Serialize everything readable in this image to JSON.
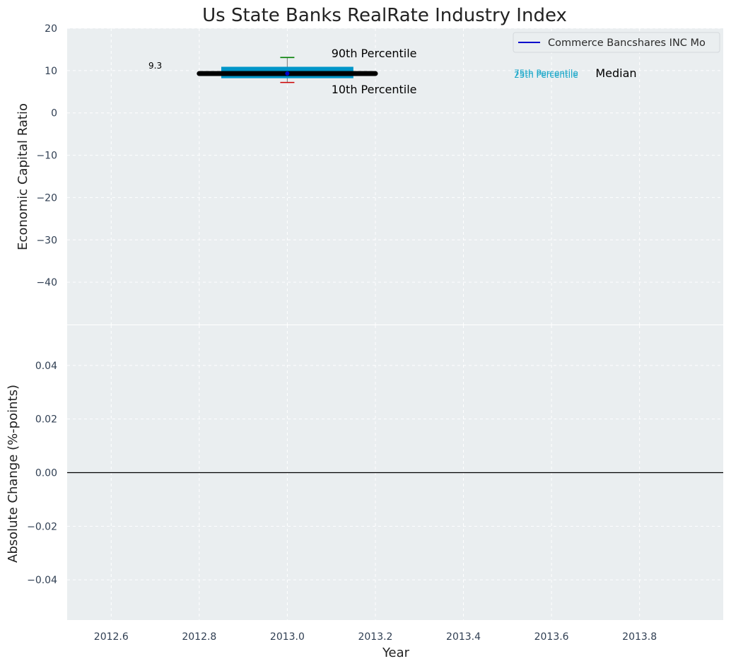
{
  "chart_data": {
    "type": "box",
    "title": "Us State Banks RealRate Industry Index",
    "colors": {
      "panel_bg": "#eaeef0",
      "series_line": "#0000cc",
      "box_fill": "#0095c8",
      "median_line": "#000000",
      "whisker_high": "#008000",
      "whisker_low": "#cc0000",
      "whisker_stem": "#8a8a8a",
      "percentile_25_75_text": "#1aa7c9"
    },
    "top_panel": {
      "ylabel": "Economic Capital Ratio",
      "ylim": [
        -50,
        20
      ],
      "yticks": [
        "20",
        "10",
        "0",
        "−10",
        "−20",
        "−30",
        "−40"
      ],
      "ytick_values": [
        20,
        10,
        0,
        -10,
        -20,
        -30,
        -40
      ],
      "legend": {
        "placement": "top-right",
        "entries": [
          "Commerce Bancshares INC Mo"
        ]
      },
      "box": {
        "x": 2013.0,
        "p10": 7.2,
        "p25": 8.2,
        "median": 9.3,
        "p75": 10.9,
        "p90": 13.1
      },
      "median_bar_x": [
        2012.8,
        2013.2
      ],
      "box_x": [
        2012.85,
        2013.15
      ],
      "series": [
        {
          "name": "Commerce Bancshares INC Mo",
          "x": [
            2013.0
          ],
          "values": [
            9.3
          ]
        }
      ],
      "value_label": {
        "text": "9.3",
        "x": 2012.7,
        "y": 10.5
      },
      "annotations": [
        {
          "text": "90th Percentile",
          "x": 2013.1,
          "y": 14,
          "style": "anno"
        },
        {
          "text": "10th Percentile",
          "x": 2013.1,
          "y": 5.5,
          "style": "anno"
        },
        {
          "text": "75th Percentile",
          "x": 2013.515,
          "y": 9.6,
          "style": "anno-cyan"
        },
        {
          "text": "25th Percentile",
          "x": 2013.515,
          "y": 9.1,
          "style": "anno-cyan"
        },
        {
          "text": "Median",
          "x": 2013.7,
          "y": 9.3,
          "style": "anno"
        }
      ]
    },
    "bottom_panel": {
      "xlabel": "Year",
      "ylabel": "Absolute Change (%-points)",
      "ylim": [
        -0.055,
        0.055
      ],
      "yticks": [
        "0.04",
        "0.02",
        "0.00",
        "−0.02",
        "−0.04"
      ],
      "ytick_values": [
        0.04,
        0.02,
        0.0,
        -0.02,
        -0.04
      ],
      "zero_line": 0.0
    },
    "xlim": [
      2012.5,
      2013.99
    ],
    "xticks": [
      "2012.6",
      "2012.8",
      "2013.0",
      "2013.2",
      "2013.4",
      "2013.6",
      "2013.8"
    ],
    "xtick_values": [
      2012.6,
      2012.8,
      2013.0,
      2013.2,
      2013.4,
      2013.6,
      2013.8
    ],
    "grid": true
  }
}
